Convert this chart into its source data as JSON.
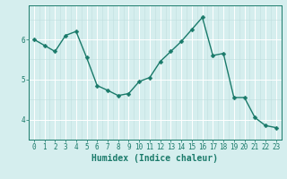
{
  "x": [
    0,
    1,
    2,
    3,
    4,
    5,
    6,
    7,
    8,
    9,
    10,
    11,
    12,
    13,
    14,
    15,
    16,
    17,
    18,
    19,
    20,
    21,
    22,
    23
  ],
  "y": [
    6.0,
    5.85,
    5.7,
    6.1,
    6.2,
    5.55,
    4.85,
    4.73,
    4.6,
    4.65,
    4.95,
    5.05,
    5.45,
    5.7,
    5.95,
    6.25,
    6.55,
    5.6,
    5.65,
    4.55,
    4.55,
    4.05,
    3.85,
    3.8
  ],
  "line_color": "#1a7a6a",
  "marker": "D",
  "marker_size": 2.5,
  "line_width": 1.0,
  "xlabel": "Humidex (Indice chaleur)",
  "xlabel_fontsize": 7,
  "xlabel_fontweight": "bold",
  "bg_color": "#d5eeee",
  "grid_color_major": "#ffffff",
  "grid_color_minor": "#c0dede",
  "xlim": [
    -0.5,
    23.5
  ],
  "ylim": [
    3.5,
    6.85
  ],
  "yticks": [
    4,
    5,
    6
  ],
  "xticks": [
    0,
    1,
    2,
    3,
    4,
    5,
    6,
    7,
    8,
    9,
    10,
    11,
    12,
    13,
    14,
    15,
    16,
    17,
    18,
    19,
    20,
    21,
    22,
    23
  ],
  "tick_fontsize": 5.5,
  "tick_color": "#1a7a6a",
  "ylabel_fontsize": 7
}
